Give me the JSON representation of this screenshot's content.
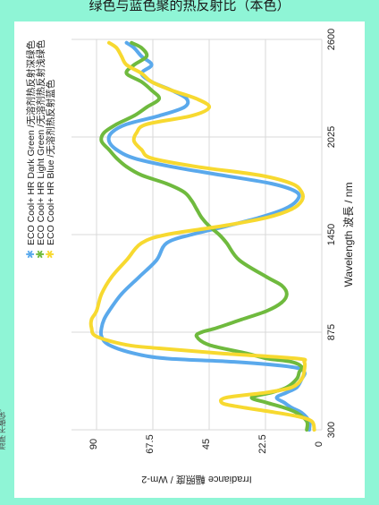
{
  "title": "绿色与蓝色聚的热反射比（本色）",
  "side_note": "湿厚 不确保。",
  "colors": {
    "background": "#8ff5d6",
    "card": "#ffffff",
    "grid": "#d9d9d9"
  },
  "chart_data": {
    "type": "line",
    "orientation": "rotated-90-ccw",
    "xlabel": "Wavelength 波長 / nm",
    "ylabel": "Irradiance 輻照度 / Wm-2",
    "xlim": [
      300,
      2600
    ],
    "ylim": [
      0,
      100
    ],
    "xticks": [
      300,
      875,
      1450,
      2025,
      2600
    ],
    "yticks": [
      0,
      22.5,
      45,
      67.5,
      90
    ],
    "ytick_labels": [
      "0",
      "22.5",
      "45",
      "67.5",
      "90"
    ],
    "grid": true,
    "legend_position": "top-right",
    "series": [
      {
        "name": "ECO Cool+ HR Dark Green /无溶剂热反射深绿色",
        "color": "#5aa9ec",
        "marker": "asterisk",
        "points": [
          [
            300,
            5
          ],
          [
            350,
            5
          ],
          [
            400,
            8
          ],
          [
            430,
            12
          ],
          [
            460,
            15
          ],
          [
            490,
            18
          ],
          [
            520,
            14
          ],
          [
            550,
            10
          ],
          [
            600,
            8
          ],
          [
            640,
            7
          ],
          [
            670,
            12
          ],
          [
            700,
            35
          ],
          [
            720,
            62
          ],
          [
            750,
            75
          ],
          [
            800,
            85
          ],
          [
            850,
            88
          ],
          [
            900,
            88
          ],
          [
            950,
            87
          ],
          [
            1000,
            85
          ],
          [
            1100,
            80
          ],
          [
            1200,
            73
          ],
          [
            1300,
            66
          ],
          [
            1400,
            62
          ],
          [
            1450,
            52
          ],
          [
            1500,
            38
          ],
          [
            1550,
            25
          ],
          [
            1600,
            15
          ],
          [
            1650,
            10
          ],
          [
            1700,
            10
          ],
          [
            1750,
            20
          ],
          [
            1800,
            40
          ],
          [
            1850,
            60
          ],
          [
            1900,
            75
          ],
          [
            1950,
            82
          ],
          [
            2000,
            85
          ],
          [
            2050,
            84
          ],
          [
            2100,
            78
          ],
          [
            2150,
            65
          ],
          [
            2200,
            55
          ],
          [
            2250,
            54
          ],
          [
            2300,
            60
          ],
          [
            2350,
            68
          ],
          [
            2400,
            72
          ],
          [
            2450,
            68
          ],
          [
            2500,
            72
          ],
          [
            2550,
            75
          ],
          [
            2580,
            78
          ]
        ]
      },
      {
        "name": "ECO Cool+ HR Light Green /无溶剂热反射浅绿色",
        "color": "#6fba3e",
        "marker": "asterisk",
        "points": [
          [
            300,
            6
          ],
          [
            350,
            6
          ],
          [
            400,
            10
          ],
          [
            430,
            15
          ],
          [
            460,
            22
          ],
          [
            490,
            28
          ],
          [
            520,
            20
          ],
          [
            550,
            14
          ],
          [
            600,
            10
          ],
          [
            640,
            9
          ],
          [
            670,
            8
          ],
          [
            700,
            12
          ],
          [
            720,
            22
          ],
          [
            750,
            30
          ],
          [
            800,
            45
          ],
          [
            850,
            50
          ],
          [
            875,
            48
          ],
          [
            900,
            42
          ],
          [
            950,
            32
          ],
          [
            1000,
            22
          ],
          [
            1050,
            16
          ],
          [
            1100,
            14
          ],
          [
            1150,
            16
          ],
          [
            1200,
            22
          ],
          [
            1300,
            33
          ],
          [
            1400,
            38
          ],
          [
            1450,
            41
          ],
          [
            1500,
            45
          ],
          [
            1550,
            48
          ],
          [
            1600,
            50
          ],
          [
            1650,
            52
          ],
          [
            1700,
            55
          ],
          [
            1750,
            62
          ],
          [
            1800,
            72
          ],
          [
            1850,
            78
          ],
          [
            1900,
            82
          ],
          [
            1950,
            85
          ],
          [
            2000,
            88
          ],
          [
            2050,
            87
          ],
          [
            2100,
            82
          ],
          [
            2150,
            75
          ],
          [
            2200,
            70
          ],
          [
            2250,
            65
          ],
          [
            2300,
            68
          ],
          [
            2350,
            72
          ],
          [
            2400,
            78
          ],
          [
            2450,
            75
          ],
          [
            2500,
            70
          ],
          [
            2550,
            72
          ],
          [
            2580,
            76
          ]
        ]
      },
      {
        "name": "ECO Cool+ HR Blue /无溶剂热反射蓝色",
        "color": "#f7d930",
        "marker": "asterisk",
        "points": [
          [
            300,
            3
          ],
          [
            350,
            4
          ],
          [
            380,
            10
          ],
          [
            410,
            22
          ],
          [
            440,
            35
          ],
          [
            460,
            40
          ],
          [
            490,
            38
          ],
          [
            520,
            22
          ],
          [
            550,
            12
          ],
          [
            600,
            8
          ],
          [
            650,
            7
          ],
          [
            700,
            7
          ],
          [
            720,
            10
          ],
          [
            750,
            40
          ],
          [
            780,
            65
          ],
          [
            800,
            78
          ],
          [
            850,
            90
          ],
          [
            900,
            92
          ],
          [
            950,
            92
          ],
          [
            1000,
            90
          ],
          [
            1100,
            88
          ],
          [
            1200,
            84
          ],
          [
            1300,
            78
          ],
          [
            1400,
            72
          ],
          [
            1450,
            62
          ],
          [
            1500,
            40
          ],
          [
            1550,
            22
          ],
          [
            1600,
            12
          ],
          [
            1650,
            8
          ],
          [
            1700,
            8
          ],
          [
            1750,
            12
          ],
          [
            1800,
            25
          ],
          [
            1850,
            50
          ],
          [
            1900,
            68
          ],
          [
            1950,
            72
          ],
          [
            2000,
            75
          ],
          [
            2050,
            74
          ],
          [
            2100,
            70
          ],
          [
            2150,
            52
          ],
          [
            2200,
            45
          ],
          [
            2250,
            50
          ],
          [
            2300,
            60
          ],
          [
            2350,
            68
          ],
          [
            2400,
            72
          ],
          [
            2450,
            78
          ],
          [
            2500,
            80
          ],
          [
            2550,
            82
          ],
          [
            2580,
            85
          ]
        ]
      }
    ]
  }
}
